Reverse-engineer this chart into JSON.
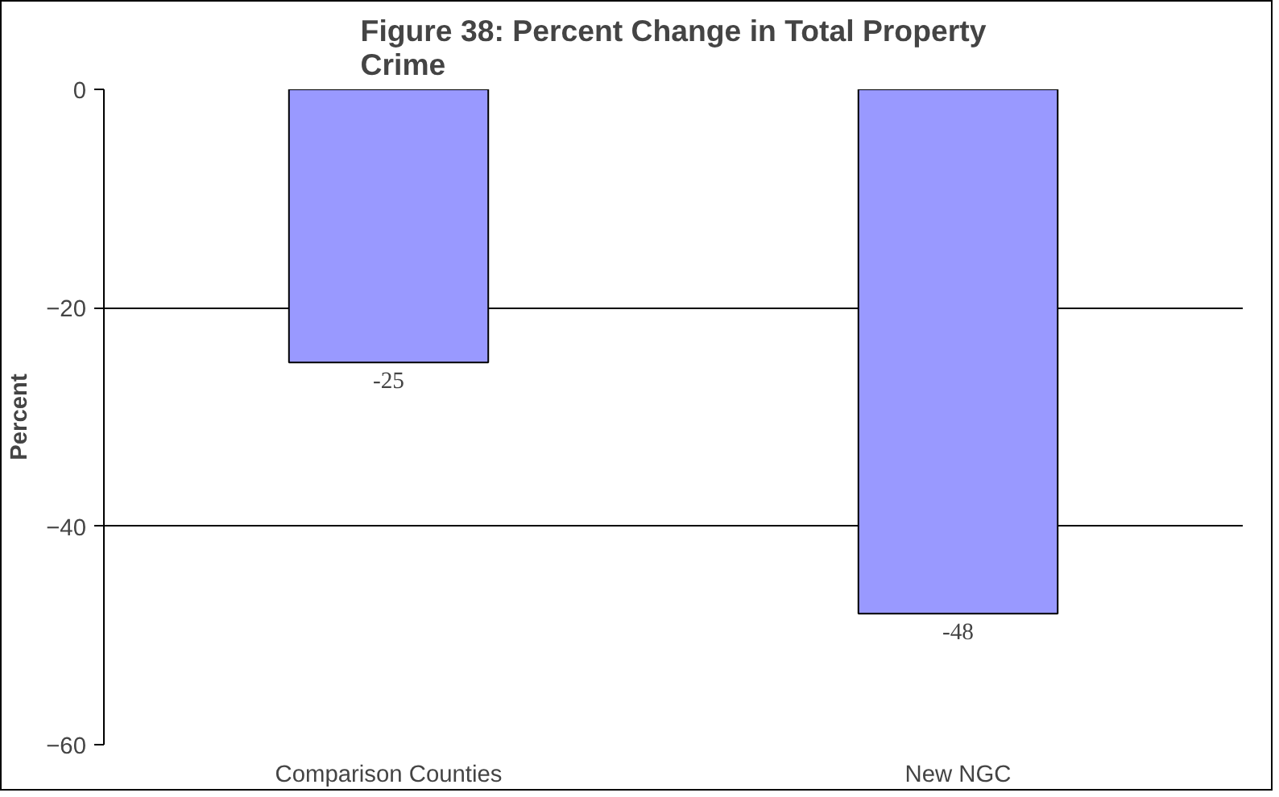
{
  "chart_data": {
    "type": "bar",
    "title": "Figure 38: Percent Change in Total Property Crime",
    "ylabel": "Percent",
    "categories": [
      "Comparison Counties",
      "New NGC"
    ],
    "values": [
      -25,
      -48
    ],
    "color": "#9999ff",
    "ylim": [
      -60,
      0
    ],
    "yticks": [
      -60,
      -40,
      -20,
      0
    ],
    "grid": "y",
    "data_labels": true
  }
}
